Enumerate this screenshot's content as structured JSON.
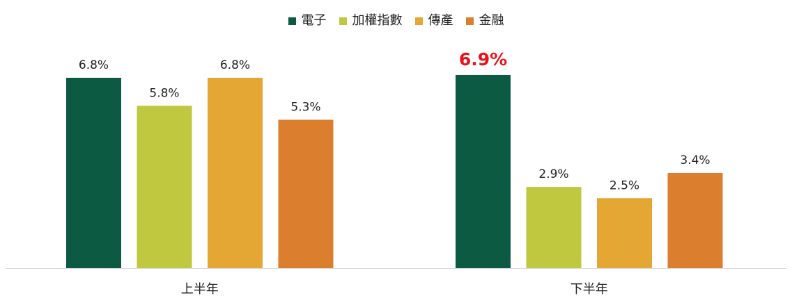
{
  "chart_data": {
    "type": "bar",
    "title": "",
    "xlabel": "",
    "ylabel": "",
    "categories": [
      "上半年",
      "下半年"
    ],
    "series": [
      {
        "name": "電子",
        "color": "#0b5a41",
        "values": [
          6.8,
          6.9
        ],
        "labels": [
          "6.8%",
          "6.9%"
        ]
      },
      {
        "name": "加權指數",
        "color": "#bfc83f",
        "values": [
          5.8,
          2.9
        ],
        "labels": [
          "5.8%",
          "2.9%"
        ]
      },
      {
        "name": "傳產",
        "color": "#e5a734",
        "values": [
          6.8,
          2.5
        ],
        "labels": [
          "6.8%",
          "2.5%"
        ]
      },
      {
        "name": "金融",
        "color": "#db7f2f",
        "values": [
          5.3,
          3.4
        ],
        "labels": [
          "5.3%",
          "3.4%"
        ]
      }
    ],
    "highlight": {
      "series": 0,
      "category": 1,
      "color": "#e8141b"
    },
    "legend_position": "top-center",
    "grid": false,
    "ylim": [
      0,
      7.3
    ]
  }
}
